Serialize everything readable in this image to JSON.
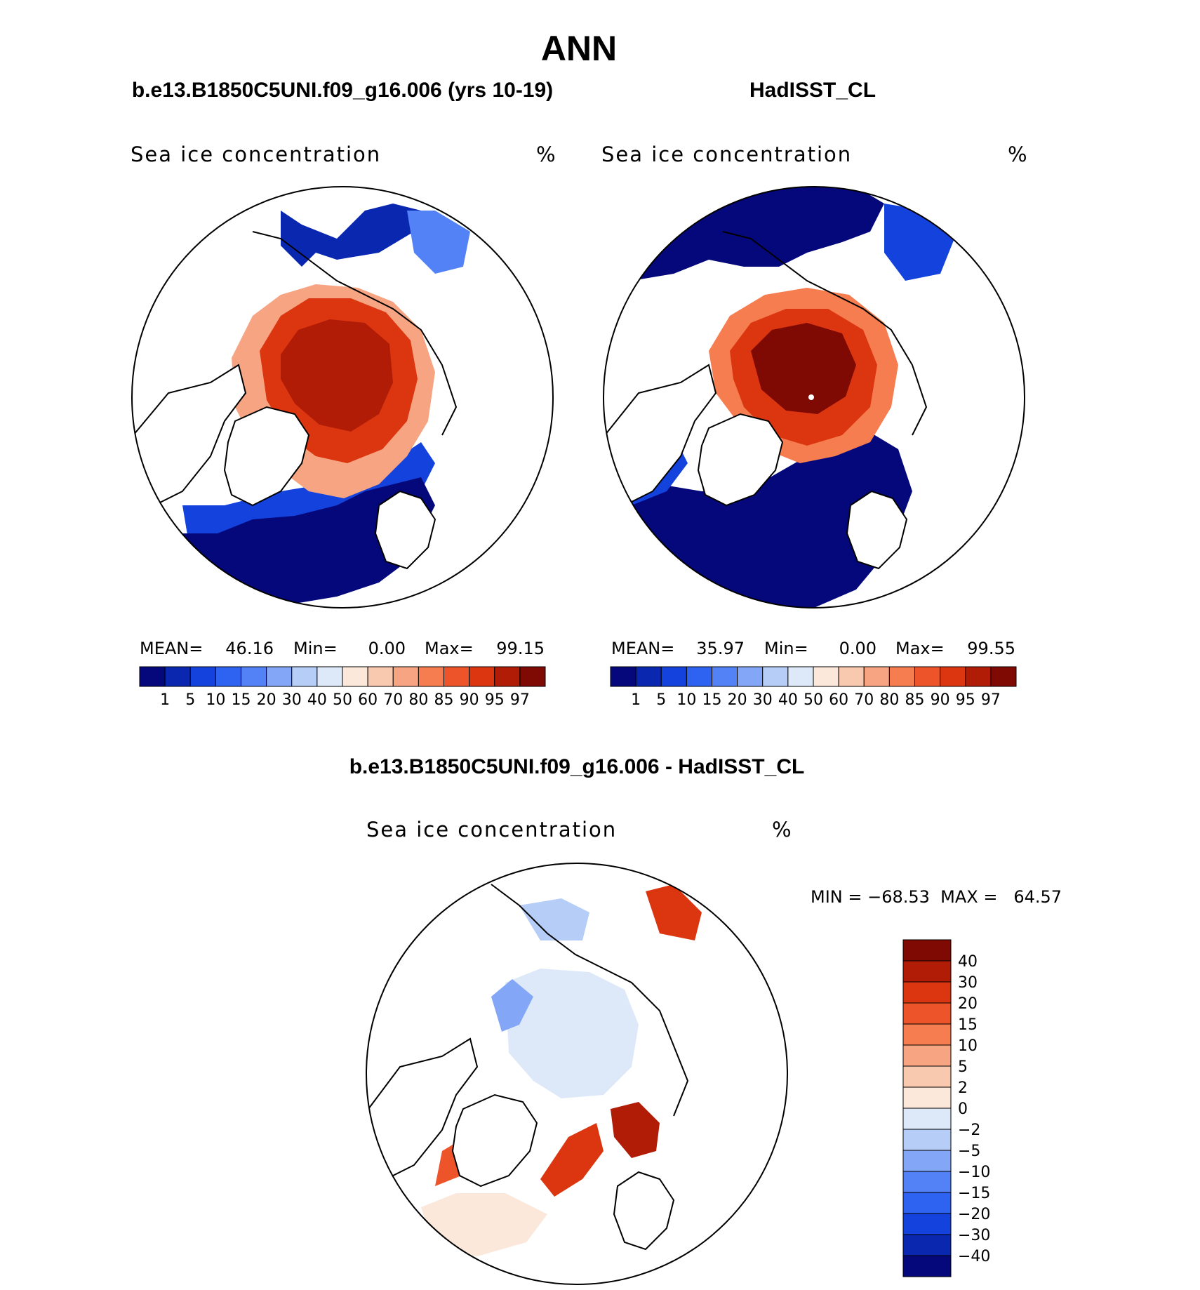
{
  "main_title": "ANN",
  "panels": [
    {
      "id": "model",
      "case_title": "b.e13.B1850C5UNI.f09_g16.006 (yrs 10-19)",
      "variable_label": "Sea ice concentration",
      "unit_label": "%",
      "stats": {
        "mean_label": "MEAN=",
        "mean": "46.16",
        "min_label": "Min=",
        "min": "0.00",
        "max_label": "Max=",
        "max": "99.15"
      }
    },
    {
      "id": "obs",
      "case_title": "HadISST_CL",
      "variable_label": "Sea ice concentration",
      "unit_label": "%",
      "stats": {
        "mean_label": "MEAN=",
        "mean": "35.97",
        "min_label": "Min=",
        "min": "0.00",
        "max_label": "Max=",
        "max": "99.55"
      }
    },
    {
      "id": "diff",
      "case_title": "b.e13.B1850C5UNI.f09_g16.006 - HadISST_CL",
      "variable_label": "Sea ice concentration",
      "unit_label": "%",
      "range_text": "MIN = −68.53  MAX =   64.57"
    }
  ],
  "chart_data": [
    {
      "type": "heatmap",
      "title": "b.e13.B1850C5UNI.f09_g16.006 (yrs 10-19)",
      "projection": "north polar stereographic",
      "variable": "Sea ice concentration",
      "unit": "%",
      "mean": 46.16,
      "min": 0.0,
      "max": 99.15,
      "colorbar_levels": [
        1,
        5,
        10,
        15,
        20,
        30,
        40,
        50,
        60,
        70,
        80,
        85,
        90,
        95,
        97
      ],
      "colorbar_colors": [
        "#04087a",
        "#0a27b0",
        "#1442dc",
        "#2e62f0",
        "#5282f5",
        "#84a6f7",
        "#b6cdf8",
        "#dde9f8",
        "#fbe8da",
        "#f8c9ae",
        "#f7a482",
        "#f57d50",
        "#ee5429",
        "#dc3610",
        "#b11c06",
        "#7f0a04"
      ]
    },
    {
      "type": "heatmap",
      "title": "HadISST_CL",
      "projection": "north polar stereographic",
      "variable": "Sea ice concentration",
      "unit": "%",
      "mean": 35.97,
      "min": 0.0,
      "max": 99.55,
      "colorbar_levels": [
        1,
        5,
        10,
        15,
        20,
        30,
        40,
        50,
        60,
        70,
        80,
        85,
        90,
        95,
        97
      ],
      "colorbar_colors": [
        "#04087a",
        "#0a27b0",
        "#1442dc",
        "#2e62f0",
        "#5282f5",
        "#84a6f7",
        "#b6cdf8",
        "#dde9f8",
        "#fbe8da",
        "#f8c9ae",
        "#f7a482",
        "#f57d50",
        "#ee5429",
        "#dc3610",
        "#b11c06",
        "#7f0a04"
      ]
    },
    {
      "type": "heatmap",
      "title": "b.e13.B1850C5UNI.f09_g16.006 - HadISST_CL",
      "projection": "north polar stereographic",
      "variable": "Sea ice concentration",
      "unit": "%",
      "min": -68.53,
      "max": 64.57,
      "colorbar_levels": [
        40,
        30,
        20,
        15,
        10,
        5,
        2,
        0,
        -2,
        -5,
        -10,
        -15,
        -20,
        -30,
        -40
      ],
      "colorbar_labels": [
        "40",
        "30",
        "20",
        "15",
        "10",
        "5",
        "2",
        "0",
        "−2",
        "−5",
        "−10",
        "−15",
        "−20",
        "−30",
        "−40"
      ],
      "colorbar_colors": [
        "#7f0a04",
        "#b11c06",
        "#dc3610",
        "#ee5429",
        "#f57d50",
        "#f7a482",
        "#f8c9ae",
        "#fbe8da",
        "#dde9f8",
        "#b6cdf8",
        "#84a6f7",
        "#5282f5",
        "#2e62f0",
        "#1442dc",
        "#0a27b0",
        "#04087a"
      ]
    }
  ]
}
